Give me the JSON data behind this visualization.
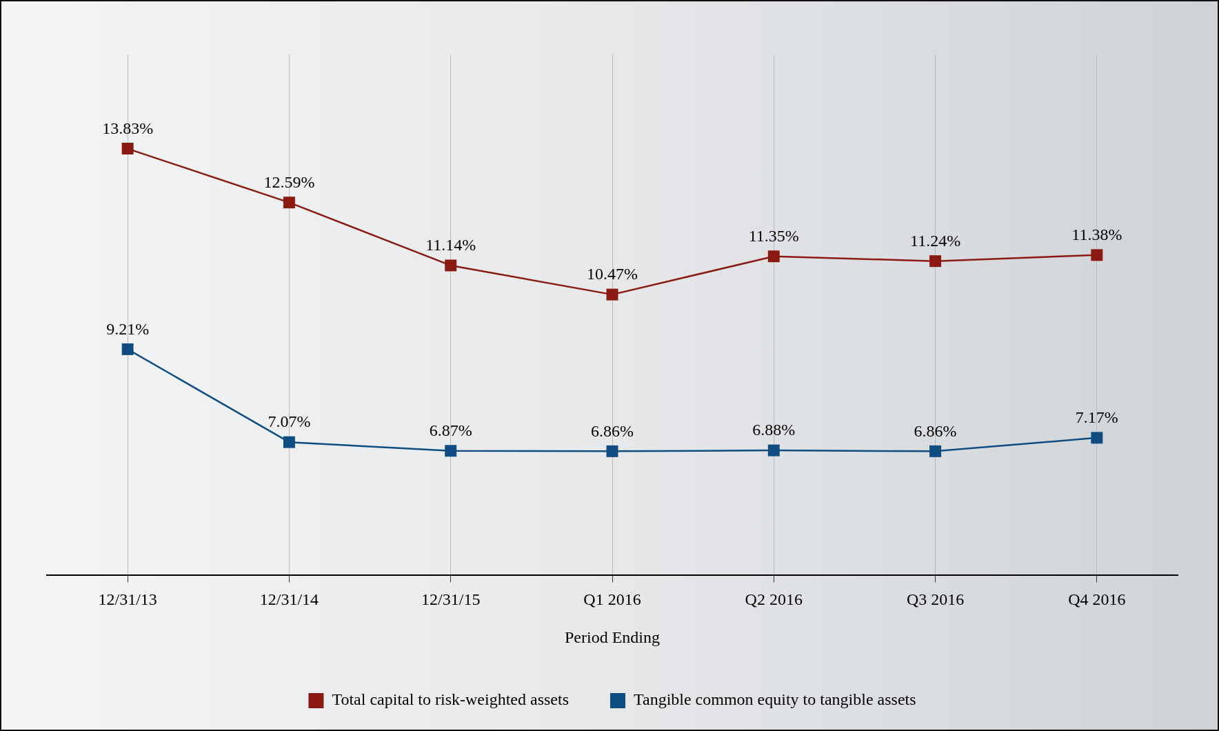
{
  "chart_data": {
    "type": "line",
    "xlabel": "Period Ending",
    "categories": [
      "12/31/13",
      "12/31/14",
      "12/31/15",
      "Q1 2016",
      "Q2 2016",
      "Q3 2016",
      "Q4 2016"
    ],
    "series": [
      {
        "name": "Total capital to risk-weighted assets",
        "color": "#8b1a12",
        "values": [
          13.83,
          12.59,
          11.14,
          10.47,
          11.35,
          11.24,
          11.38
        ],
        "value_labels": [
          "13.83%",
          "12.59%",
          "11.14%",
          "10.47%",
          "11.35%",
          "11.24%",
          "11.38%"
        ]
      },
      {
        "name": "Tangible common equity to tangible assets",
        "color": "#0f4c81",
        "values": [
          9.21,
          7.07,
          6.87,
          6.86,
          6.88,
          6.86,
          7.17
        ],
        "value_labels": [
          "9.21%",
          "7.07%",
          "6.87%",
          "6.86%",
          "6.88%",
          "6.86%",
          "7.17%"
        ]
      }
    ],
    "ylim": [
      4,
      16
    ],
    "tick_labels": "x",
    "grid": "x",
    "legend": "bottom",
    "marker": "square",
    "line_style": "solid"
  }
}
